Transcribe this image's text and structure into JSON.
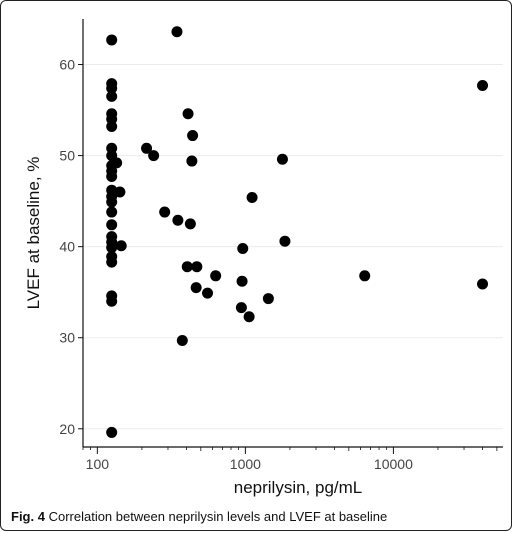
{
  "caption": {
    "label": "Fig. 4",
    "text": "Correlation between neprilysin levels and LVEF at baseline"
  },
  "chart_data": {
    "type": "scatter",
    "title": "",
    "xlabel": "neprilysin, pg/mL",
    "ylabel": "LVEF at baseline, %",
    "xscale": "log",
    "xlim": [
      80,
      55000
    ],
    "ylim": [
      18,
      65
    ],
    "xticks": [
      100,
      1000,
      10000
    ],
    "xtick_labels": [
      "100",
      "1000",
      "10000"
    ],
    "yticks": [
      20,
      30,
      40,
      50,
      60
    ],
    "ytick_labels": [
      "20",
      "30",
      "40",
      "50",
      "60"
    ],
    "grid": true,
    "legend": "none",
    "marker_color": "#000000",
    "points": [
      {
        "x": 125,
        "y": 62.7
      },
      {
        "x": 125,
        "y": 57.9
      },
      {
        "x": 125,
        "y": 57.4
      },
      {
        "x": 125,
        "y": 56.5
      },
      {
        "x": 125,
        "y": 54.6
      },
      {
        "x": 125,
        "y": 54.0
      },
      {
        "x": 125,
        "y": 53.2
      },
      {
        "x": 125,
        "y": 50.8
      },
      {
        "x": 125,
        "y": 50.0
      },
      {
        "x": 125,
        "y": 48.9
      },
      {
        "x": 125,
        "y": 48.3
      },
      {
        "x": 125,
        "y": 47.7
      },
      {
        "x": 125,
        "y": 46.2
      },
      {
        "x": 125,
        "y": 45.5
      },
      {
        "x": 125,
        "y": 44.9
      },
      {
        "x": 125,
        "y": 43.8
      },
      {
        "x": 125,
        "y": 42.4
      },
      {
        "x": 125,
        "y": 41.1
      },
      {
        "x": 125,
        "y": 40.5
      },
      {
        "x": 125,
        "y": 39.9
      },
      {
        "x": 125,
        "y": 38.9
      },
      {
        "x": 125,
        "y": 38.3
      },
      {
        "x": 125,
        "y": 34.6
      },
      {
        "x": 125,
        "y": 34.0
      },
      {
        "x": 125,
        "y": 19.6
      },
      {
        "x": 135,
        "y": 49.2
      },
      {
        "x": 142,
        "y": 46.0
      },
      {
        "x": 145,
        "y": 40.1
      },
      {
        "x": 215,
        "y": 50.8
      },
      {
        "x": 240,
        "y": 50.0
      },
      {
        "x": 285,
        "y": 43.8
      },
      {
        "x": 345,
        "y": 63.6
      },
      {
        "x": 350,
        "y": 42.9
      },
      {
        "x": 375,
        "y": 29.7
      },
      {
        "x": 405,
        "y": 37.8
      },
      {
        "x": 410,
        "y": 54.6
      },
      {
        "x": 425,
        "y": 42.5
      },
      {
        "x": 435,
        "y": 49.4
      },
      {
        "x": 440,
        "y": 52.2
      },
      {
        "x": 465,
        "y": 35.5
      },
      {
        "x": 470,
        "y": 37.8
      },
      {
        "x": 555,
        "y": 34.9
      },
      {
        "x": 630,
        "y": 36.8
      },
      {
        "x": 940,
        "y": 33.3
      },
      {
        "x": 950,
        "y": 36.2
      },
      {
        "x": 960,
        "y": 39.8
      },
      {
        "x": 1060,
        "y": 32.3
      },
      {
        "x": 1110,
        "y": 45.4
      },
      {
        "x": 1430,
        "y": 34.3
      },
      {
        "x": 1780,
        "y": 49.6
      },
      {
        "x": 1850,
        "y": 40.6
      },
      {
        "x": 6400,
        "y": 36.8
      },
      {
        "x": 40000,
        "y": 57.7
      },
      {
        "x": 40000,
        "y": 35.9
      }
    ]
  }
}
